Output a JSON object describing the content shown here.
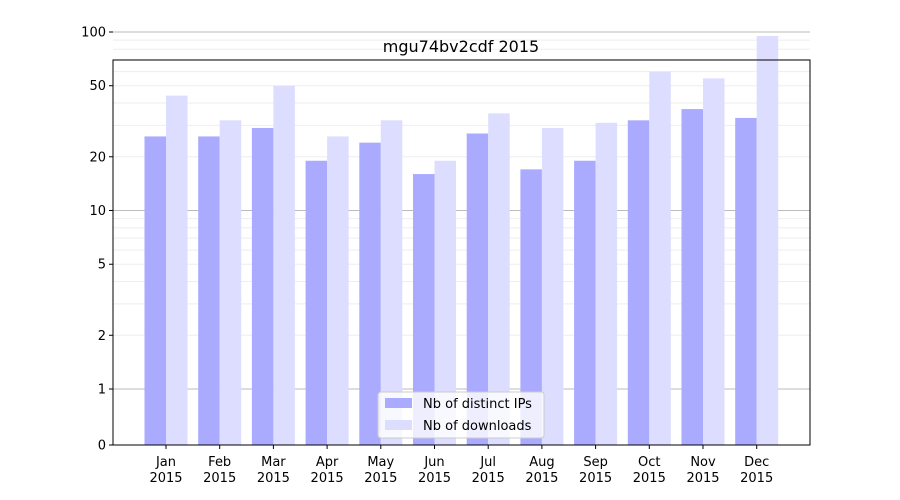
{
  "chart_data": {
    "type": "bar",
    "title": "mgu74bv2cdf 2015",
    "xlabel": "",
    "ylabel": "",
    "y_scale": "symlog",
    "ylim": [
      0,
      130
    ],
    "categories": [
      [
        "Jan",
        "2015"
      ],
      [
        "Feb",
        "2015"
      ],
      [
        "Mar",
        "2015"
      ],
      [
        "Apr",
        "2015"
      ],
      [
        "May",
        "2015"
      ],
      [
        "Jun",
        "2015"
      ],
      [
        "Jul",
        "2015"
      ],
      [
        "Aug",
        "2015"
      ],
      [
        "Sep",
        "2015"
      ],
      [
        "Oct",
        "2015"
      ],
      [
        "Nov",
        "2015"
      ],
      [
        "Dec",
        "2015"
      ]
    ],
    "y_ticks": [
      0,
      1,
      2,
      5,
      10,
      20,
      50,
      100
    ],
    "y_tick_labels": [
      "0",
      "1",
      "2",
      "5",
      "10",
      "20",
      "50",
      "100"
    ],
    "series": [
      {
        "name": "Nb of distinct IPs",
        "color": "#aaaaff",
        "values": [
          26,
          26,
          29,
          19,
          24,
          16,
          27,
          17,
          19,
          32,
          37,
          33
        ]
      },
      {
        "name": "Nb of downloads",
        "color": "#ddddff",
        "values": [
          44,
          32,
          50,
          26,
          32,
          19,
          35,
          29,
          31,
          60,
          55,
          95
        ]
      }
    ],
    "grid": true,
    "legend_position": "bottom-center"
  }
}
